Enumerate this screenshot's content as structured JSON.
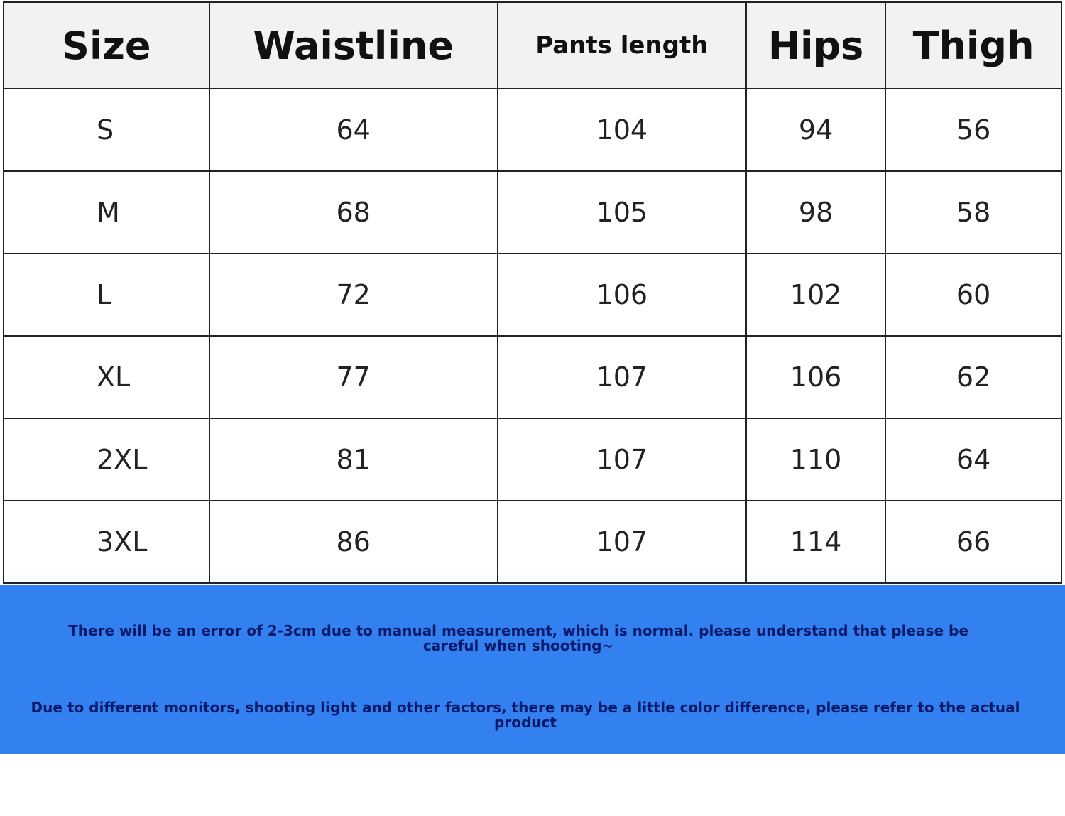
{
  "table": {
    "header": [
      "Size",
      "Waistline",
      "Pants length",
      "Hips",
      "Thigh"
    ],
    "rows": [
      [
        "S",
        "64",
        "104",
        "94",
        "56"
      ],
      [
        "M",
        "68",
        "105",
        "98",
        "58"
      ],
      [
        "L",
        "72",
        "106",
        "102",
        "60"
      ],
      [
        "XL",
        "77",
        "107",
        "106",
        "62"
      ],
      [
        "2XL",
        "81",
        "107",
        "110",
        "64"
      ],
      [
        "3XL",
        "86",
        "107",
        "114",
        "66"
      ]
    ]
  },
  "notes": [
    "There will be an error of 2-3cm due to manual measurement, which is normal. please understand that please be careful when shooting~",
    "Due to different monitors, shooting light and other factors, there may be a little color difference, please refer to the actual product"
  ]
}
